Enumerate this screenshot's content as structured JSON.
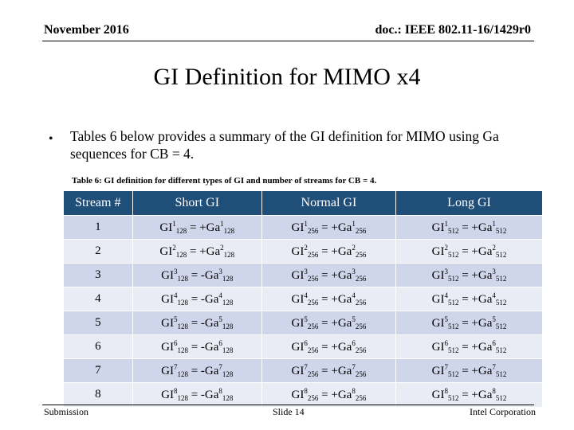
{
  "header": {
    "date": "November 2016",
    "doc": "doc.: IEEE 802.11-16/1429r0"
  },
  "title": "GI Definition for MIMO x4",
  "bullet": {
    "marker": "•",
    "text": "Tables 6 below provides a summary of the GI definition for MIMO using Ga sequences for CB = 4."
  },
  "table": {
    "caption": "Table 6: GI definition for different types of GI and number of streams for CB = 4.",
    "headers": [
      "Stream #",
      "Short GI",
      "Normal GI",
      "Long GI"
    ],
    "rows": [
      {
        "stream": "1",
        "short": {
          "n": "1",
          "sign": "+"
        },
        "normal": {
          "n": "1",
          "sign": "+"
        },
        "long": {
          "n": "1",
          "sign": "+"
        }
      },
      {
        "stream": "2",
        "short": {
          "n": "2",
          "sign": "+"
        },
        "normal": {
          "n": "2",
          "sign": "+"
        },
        "long": {
          "n": "2",
          "sign": "+"
        }
      },
      {
        "stream": "3",
        "short": {
          "n": "3",
          "sign": "-"
        },
        "normal": {
          "n": "3",
          "sign": "+"
        },
        "long": {
          "n": "3",
          "sign": "+"
        }
      },
      {
        "stream": "4",
        "short": {
          "n": "4",
          "sign": "-"
        },
        "normal": {
          "n": "4",
          "sign": "+"
        },
        "long": {
          "n": "4",
          "sign": "+"
        }
      },
      {
        "stream": "5",
        "short": {
          "n": "5",
          "sign": "-"
        },
        "normal": {
          "n": "5",
          "sign": "+"
        },
        "long": {
          "n": "5",
          "sign": "+"
        }
      },
      {
        "stream": "6",
        "short": {
          "n": "6",
          "sign": "-"
        },
        "normal": {
          "n": "6",
          "sign": "+"
        },
        "long": {
          "n": "6",
          "sign": "+"
        }
      },
      {
        "stream": "7",
        "short": {
          "n": "7",
          "sign": "-"
        },
        "normal": {
          "n": "7",
          "sign": "+"
        },
        "long": {
          "n": "7",
          "sign": "+"
        }
      },
      {
        "stream": "8",
        "short": {
          "n": "8",
          "sign": "-"
        },
        "normal": {
          "n": "8",
          "sign": "+"
        },
        "long": {
          "n": "8",
          "sign": "+"
        }
      }
    ],
    "formula": {
      "gi": "GI",
      "ga": "Ga",
      "eq": " = ",
      "len_short": "128",
      "len_normal": "256",
      "len_long": "512"
    }
  },
  "footer": {
    "left": "Submission",
    "middle": "Slide 14",
    "right": "Intel Corporation"
  },
  "colors": {
    "header_bg": "#1f4e79",
    "row_odd": "#cfd5ea",
    "row_even": "#e9ebf5"
  }
}
